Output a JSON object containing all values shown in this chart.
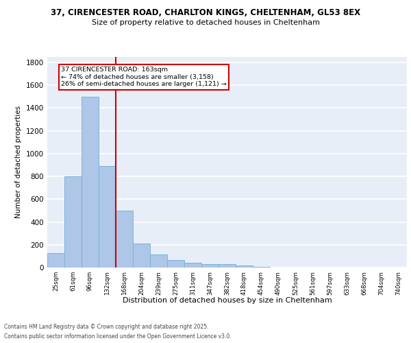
{
  "title1": "37, CIRENCESTER ROAD, CHARLTON KINGS, CHELTENHAM, GL53 8EX",
  "title2": "Size of property relative to detached houses in Cheltenham",
  "xlabel": "Distribution of detached houses by size in Cheltenham",
  "ylabel": "Number of detached properties",
  "categories": [
    "25sqm",
    "61sqm",
    "96sqm",
    "132sqm",
    "168sqm",
    "204sqm",
    "239sqm",
    "275sqm",
    "311sqm",
    "347sqm",
    "382sqm",
    "418sqm",
    "454sqm",
    "490sqm",
    "525sqm",
    "561sqm",
    "597sqm",
    "633sqm",
    "668sqm",
    "704sqm",
    "740sqm"
  ],
  "values": [
    125,
    800,
    1500,
    890,
    500,
    210,
    115,
    65,
    45,
    32,
    28,
    20,
    8,
    3,
    2,
    1,
    1,
    1,
    1,
    1,
    0
  ],
  "bar_color": "#aec6e8",
  "bar_edge_color": "#7ab4d8",
  "background_color": "#e8eef8",
  "grid_color": "#ffffff",
  "vline_color": "#cc0000",
  "annotation_text": "37 CIRENCESTER ROAD: 163sqm\n← 74% of detached houses are smaller (3,158)\n26% of semi-detached houses are larger (1,121) →",
  "annotation_box_color": "#cc0000",
  "footer1": "Contains HM Land Registry data © Crown copyright and database right 2025.",
  "footer2": "Contains public sector information licensed under the Open Government Licence v3.0.",
  "ylim": [
    0,
    1850
  ],
  "yticks": [
    0,
    200,
    400,
    600,
    800,
    1000,
    1200,
    1400,
    1600,
    1800
  ]
}
